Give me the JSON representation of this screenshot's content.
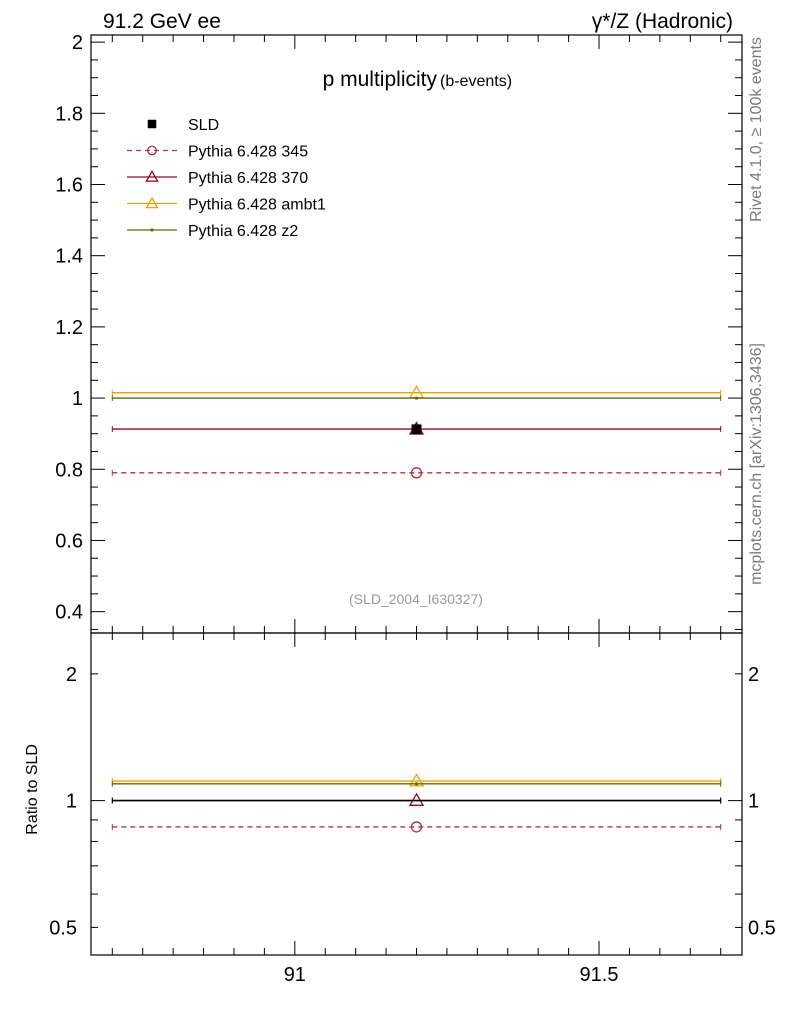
{
  "header": {
    "left": "91.2 GeV ee",
    "right": "γ*/Z (Hadronic)"
  },
  "side_labels": {
    "rivet": "Rivet 4.1.0, ≥ 100k events",
    "mcplots": "mcplots.cern.ch [arXiv:1306.3436]"
  },
  "chart_data": [
    {
      "type": "line",
      "panel": "main",
      "title": "p multiplicity",
      "title_suffix": "(b-events)",
      "analysis_tag": "(SLD_2004_I630327)",
      "xlabel": "",
      "ylabel": "",
      "xlim": [
        90.665,
        91.735
      ],
      "ylim": [
        0.34,
        2.02
      ],
      "x_bin": [
        90.7,
        91.7
      ],
      "x_center": 91.2,
      "y_ticks": [
        0.4,
        0.6,
        0.8,
        1,
        1.2,
        1.4,
        1.6,
        1.8,
        2
      ],
      "y_tick_labels": [
        "0.4",
        "0.6",
        "0.8",
        "1",
        "1.2",
        "1.4",
        "1.6",
        "1.8",
        "2"
      ],
      "legend_position": "top-left",
      "series": [
        {
          "name": "SLD",
          "marker": "filled-square",
          "line": "none",
          "color": "#000000",
          "value": 0.912,
          "error": 0.006
        },
        {
          "name": "Pythia 6.428 345",
          "marker": "open-circle",
          "line": "dashed",
          "color": "#b03050",
          "value": 0.79
        },
        {
          "name": "Pythia 6.428 370",
          "marker": "open-triangle",
          "line": "solid",
          "color": "#8b0a1e",
          "value": 0.913
        },
        {
          "name": "Pythia 6.428 ambt1",
          "marker": "open-triangle",
          "line": "solid",
          "color": "#f0a000",
          "value": 1.015
        },
        {
          "name": "Pythia 6.428 z2",
          "marker": "dot",
          "line": "solid",
          "color": "#5c6b00",
          "value": 1.0
        }
      ]
    },
    {
      "type": "line",
      "panel": "ratio",
      "ylabel": "Ratio to SLD",
      "scale": "log",
      "xlim": [
        90.665,
        91.735
      ],
      "ylim": [
        0.43,
        2.5
      ],
      "x_ticks": [
        91,
        91.5
      ],
      "x_tick_labels": [
        "91",
        "91.5"
      ],
      "y_ticks": [
        0.5,
        1,
        2
      ],
      "y_tick_labels": [
        "0.5",
        "1",
        "2"
      ],
      "series": [
        {
          "name": "SLD",
          "value": 1.0,
          "color": "#000000"
        },
        {
          "name": "Pythia 6.428 345",
          "value": 0.866,
          "color": "#b03050"
        },
        {
          "name": "Pythia 6.428 370",
          "value": 1.001,
          "color": "#8b0a1e"
        },
        {
          "name": "Pythia 6.428 ambt1",
          "value": 1.113,
          "color": "#f0a000"
        },
        {
          "name": "Pythia 6.428 z2",
          "value": 1.096,
          "color": "#5c6b00"
        }
      ]
    }
  ]
}
